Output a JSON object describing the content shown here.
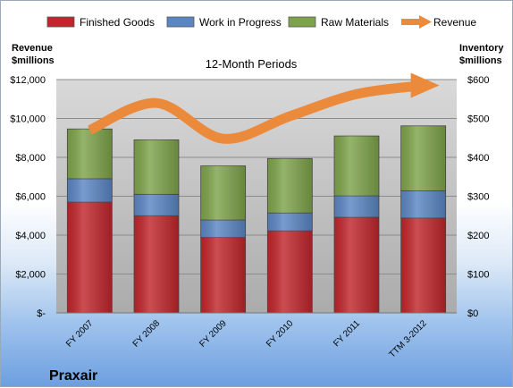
{
  "chart_data": {
    "type": "bar",
    "stacked": true,
    "title": "12-Month Periods",
    "company": "Praxair",
    "left_axis_label": [
      "Revenue",
      "$millions"
    ],
    "right_axis_label": [
      "Inventory",
      "$millions"
    ],
    "categories": [
      "FY 2007",
      "FY 2008",
      "FY 2009",
      "FY 2010",
      "FY 2011",
      "TTM 3-2012"
    ],
    "left_ticks": [
      "$-",
      "$2,000",
      "$4,000",
      "$6,000",
      "$8,000",
      "$10,000",
      "$12,000"
    ],
    "right_ticks": [
      "$0",
      "$100",
      "$200",
      "$300",
      "$400",
      "$500",
      "$600"
    ],
    "left_range": [
      0,
      12000
    ],
    "right_range": [
      0,
      600
    ],
    "series": [
      {
        "name": "Finished Goods",
        "color": "#c0262b",
        "values": [
          285,
          250,
          194,
          211,
          246,
          244
        ]
      },
      {
        "name": "Work in Progress",
        "color": "#5b86c4",
        "values": [
          60,
          55,
          45,
          46,
          55,
          70
        ]
      },
      {
        "name": "Raw Materials",
        "color": "#7ea44a",
        "values": [
          128,
          140,
          139,
          140,
          154,
          167
        ]
      }
    ],
    "line": {
      "name": "Revenue",
      "color": "#ec8a3c",
      "values": [
        9402,
        10796,
        8956,
        10116,
        11252,
        11700
      ]
    },
    "legend_position": "top",
    "grid": true
  }
}
